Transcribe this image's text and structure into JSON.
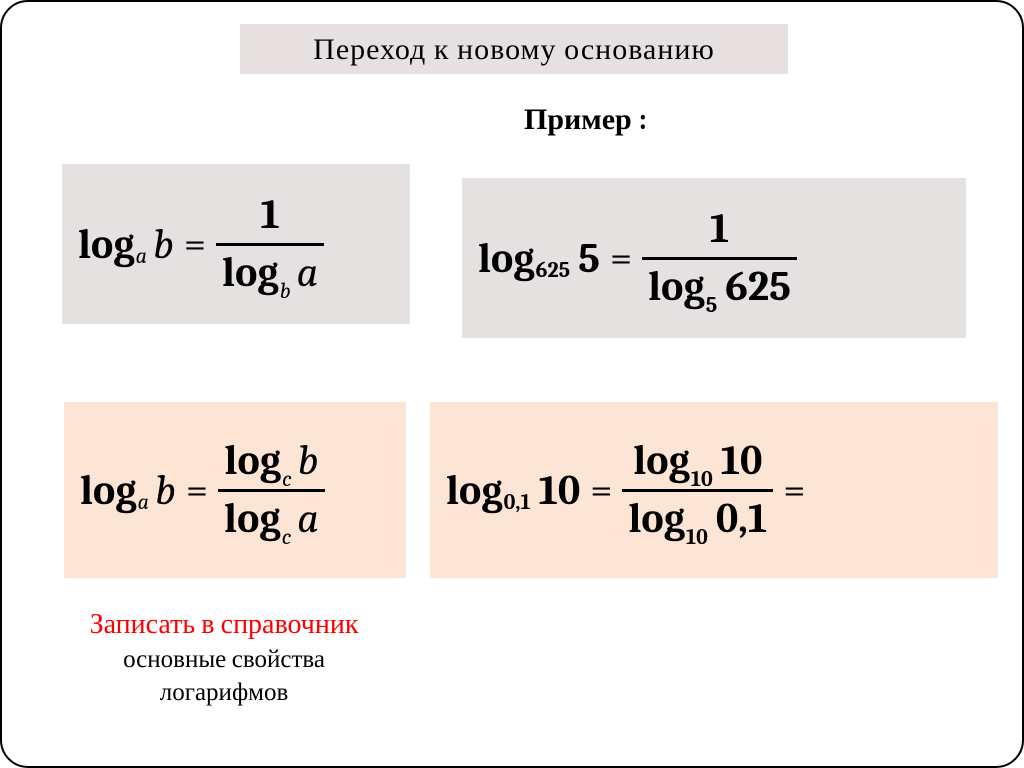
{
  "title": "Переход  к  новому основанию",
  "example_label": "Пример :",
  "colors": {
    "box_gray": "#e6e1e1",
    "box_peach": "#fce5d4",
    "note_red": "#ff0000",
    "text": "#000000",
    "background": "#ffffff",
    "border": "#000000"
  },
  "typography": {
    "title_fontsize": 30,
    "math_fontsize": 42,
    "sub_fontsize": 22,
    "note_red_fontsize": 28,
    "note_black_fontsize": 25,
    "family": "Cambria / serif"
  },
  "layout": {
    "slide_width": 1024,
    "slide_height": 768,
    "border_radius": 28
  },
  "formulas": {
    "f1": {
      "bg": "gray",
      "lhs": {
        "log": "log",
        "base": "a",
        "base_style": "italic",
        "arg": "b",
        "arg_style": "italic"
      },
      "rhs_fraction": {
        "num": {
          "plain": "1"
        },
        "den": {
          "log": "log",
          "base": "b",
          "base_style": "italic",
          "arg": "a",
          "arg_style": "italic"
        }
      }
    },
    "f2": {
      "bg": "gray",
      "lhs": {
        "log": "log",
        "base": "625",
        "base_style": "num",
        "arg": "5",
        "arg_style": "num"
      },
      "rhs_fraction": {
        "num": {
          "plain": "1"
        },
        "den": {
          "log": "log",
          "base": "5",
          "base_style": "num",
          "arg": "625",
          "arg_style": "num"
        }
      }
    },
    "f3": {
      "bg": "peach",
      "lhs": {
        "log": "log",
        "base": "a",
        "base_style": "italic",
        "arg": "b",
        "arg_style": "italic"
      },
      "rhs_fraction": {
        "num": {
          "log": "log",
          "base": "c",
          "base_style": "italic",
          "arg": "b",
          "arg_style": "italic"
        },
        "den": {
          "log": "log",
          "base": "c",
          "base_style": "italic",
          "arg": "a",
          "arg_style": "italic"
        }
      }
    },
    "f4": {
      "bg": "peach",
      "lhs": {
        "log": "log",
        "base": "0,1",
        "base_style": "num",
        "arg": "10",
        "arg_style": "num"
      },
      "rhs_fraction": {
        "num": {
          "log": "log",
          "base": "10",
          "base_style": "num",
          "arg": "10",
          "arg_style": "num"
        },
        "den": {
          "log": "log",
          "base": "10",
          "base_style": "num",
          "arg": "0,1",
          "arg_style": "num"
        }
      },
      "trailing_eq": "="
    }
  },
  "note": {
    "line1": "Записать в справочник",
    "line2": "основные свойства",
    "line3": "логарифмов"
  }
}
